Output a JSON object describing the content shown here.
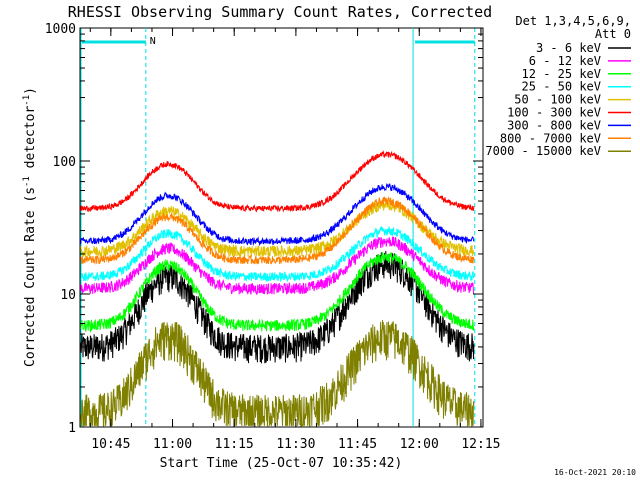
{
  "chart_data": {
    "type": "line",
    "title": "RHESSI Observing Summary Count Rates, Corrected",
    "xlabel": "Start Time (25-Oct-07 10:35:42)",
    "ylabel": "Corrected Count Rate (s",
    "ylabel_sup1": "-1",
    "ylabel_mid": " detector",
    "ylabel_sup2": "-1",
    "ylabel_end": ")",
    "yscale": "log",
    "ylim": [
      1,
      1000
    ],
    "xlim_min": [
      37.5,
      135.5
    ],
    "x_ticks": [
      {
        "min": 45,
        "label": "10:45"
      },
      {
        "min": 60,
        "label": "11:00"
      },
      {
        "min": 75,
        "label": "11:15"
      },
      {
        "min": 90,
        "label": "11:30"
      },
      {
        "min": 105,
        "label": "11:45"
      },
      {
        "min": 120,
        "label": "12:00"
      },
      {
        "min": 135,
        "label": "12:15"
      }
    ],
    "y_ticks": [
      {
        "value": 1,
        "label": "1"
      },
      {
        "value": 10,
        "label": "10"
      },
      {
        "value": 100,
        "label": "100"
      },
      {
        "value": 1000,
        "label": "1000"
      }
    ],
    "legend_header": [
      "Det 1,3,4,5,6,9,",
      "Att 0"
    ],
    "legend_placement": "right",
    "timestamp": "16-Oct-2021 20:10",
    "night_marker_label": "N",
    "night_intervals_min": [
      [
        37.5,
        53.5
      ],
      [
        118.5,
        133.5
      ]
    ],
    "orbit_boundaries_min": [
      53.5,
      118.5,
      133.5
    ],
    "series": [
      {
        "name": "3 - 6 keV",
        "color": "#000000",
        "base": 4.0,
        "peak1": 13.5,
        "peak2": 17.0,
        "noise": 0.25
      },
      {
        "name": "6 - 12 keV",
        "color": "#ff00ff",
        "base": 11.0,
        "peak1": 22.0,
        "peak2": 25.0,
        "noise": 0.1
      },
      {
        "name": "12 - 25 keV",
        "color": "#00ff00",
        "base": 5.8,
        "peak1": 16.5,
        "peak2": 19.0,
        "noise": 0.1
      },
      {
        "name": "25 - 50 keV",
        "color": "#00ffff",
        "base": 13.5,
        "peak1": 28.5,
        "peak2": 30.0,
        "noise": 0.08
      },
      {
        "name": "50 - 100 keV",
        "color": "#e0c000",
        "base": 21.0,
        "peak1": 42.0,
        "peak2": 47.0,
        "noise": 0.1
      },
      {
        "name": "100 - 300 keV",
        "color": "#ff0000",
        "base": 44.0,
        "peak1": 95.0,
        "peak2": 112.0,
        "noise": 0.05
      },
      {
        "name": "300 - 800 keV",
        "color": "#0000ff",
        "base": 25.0,
        "peak1": 55.0,
        "peak2": 64.0,
        "noise": 0.06
      },
      {
        "name": "800 - 7000 keV",
        "color": "#ff8000",
        "base": 18.0,
        "peak1": 38.0,
        "peak2": 50.0,
        "noise": 0.07
      },
      {
        "name": "7000 - 15000 keV",
        "color": "#808000",
        "base": 1.3,
        "peak1": 4.8,
        "peak2": 4.8,
        "noise": 0.35
      }
    ]
  }
}
